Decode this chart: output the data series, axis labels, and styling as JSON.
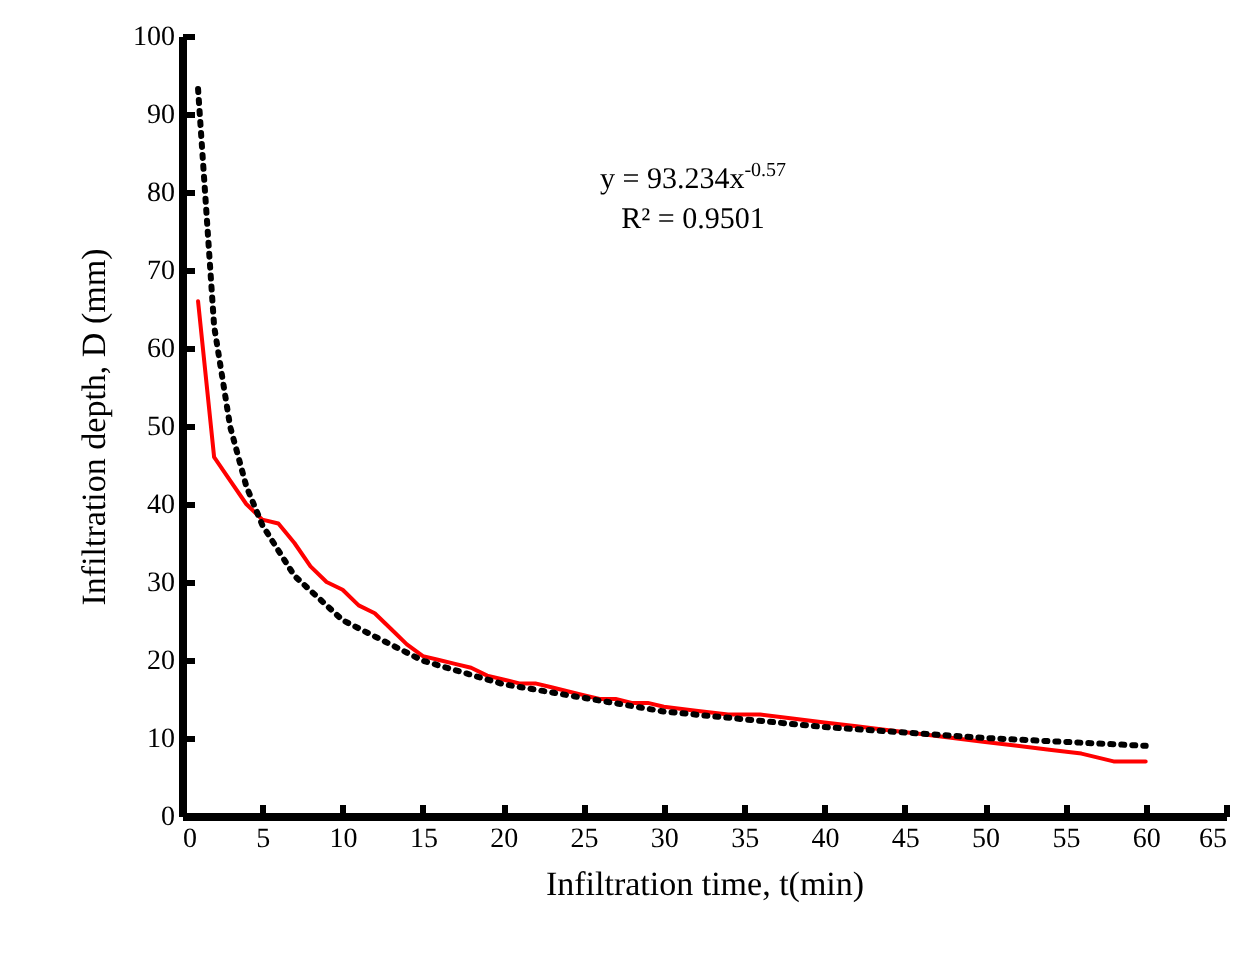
{
  "chart_data": {
    "type": "line",
    "xlabel": "Infiltration time, t(min)",
    "ylabel": "Infiltration depth, D (mm)",
    "annotations": [
      "y = 93.234x$^{-0.57}$",
      "R² = 0.9501"
    ],
    "xlim": [
      0,
      65
    ],
    "xticks": [
      0,
      5,
      10,
      15,
      20,
      25,
      30,
      35,
      40,
      45,
      50,
      55,
      60,
      65
    ],
    "ylim": [
      0,
      100
    ],
    "yticks": [
      0,
      10,
      20,
      30,
      40,
      50,
      60,
      70,
      80,
      90,
      100
    ],
    "grid": false,
    "marker": "none",
    "series": [
      {
        "color": "#ff0000",
        "line_style": "solid",
        "x": [
          1,
          2,
          3,
          4,
          5,
          6,
          7,
          8,
          9,
          10,
          11,
          12,
          13,
          14,
          15,
          16,
          17,
          18,
          19,
          20,
          21,
          22,
          23,
          24,
          25,
          26,
          27,
          28,
          29,
          30,
          32,
          34,
          36,
          38,
          40,
          42,
          44,
          46,
          48,
          50,
          52,
          54,
          56,
          58,
          60
        ],
        "values": [
          66,
          46,
          43,
          40,
          38,
          37.5,
          35,
          32,
          30,
          29,
          27,
          26,
          24,
          22,
          20.5,
          20,
          19.5,
          19,
          18,
          17.5,
          17,
          17,
          16.5,
          16,
          15.5,
          15,
          15,
          14.5,
          14.5,
          14,
          13.5,
          13,
          13,
          12.5,
          12,
          11.5,
          11,
          10.5,
          10,
          9.5,
          9,
          8.5,
          8,
          7,
          7
        ]
      },
      {
        "type": "line",
        "color": "#000000",
        "line_style": "dotted",
        "x": [
          1,
          2,
          3,
          4,
          5,
          7,
          10,
          15,
          20,
          30,
          40,
          50,
          60
        ],
        "values": [
          93.2,
          62.8,
          49.9,
          42.3,
          37.3,
          30.8,
          25.1,
          19.9,
          16.9,
          13.4,
          11.4,
          10.0,
          9.0
        ]
      }
    ]
  }
}
